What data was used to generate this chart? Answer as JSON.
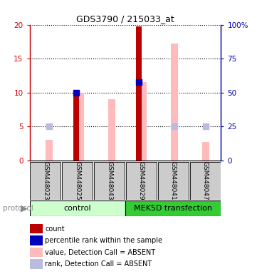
{
  "title": "GDS3790 / 215033_at",
  "samples": [
    "GSM448023",
    "GSM448025",
    "GSM448043",
    "GSM448029",
    "GSM448041",
    "GSM448047"
  ],
  "red_bars": [
    null,
    10.0,
    null,
    19.7,
    null,
    null
  ],
  "pink_bars": [
    3.0,
    10.0,
    9.0,
    11.5,
    17.2,
    2.7
  ],
  "blue_squares": [
    null,
    10.0,
    null,
    11.5,
    null,
    null
  ],
  "lightblue_dots": [
    5.0,
    null,
    null,
    null,
    5.0,
    5.0
  ],
  "ylim_left": [
    0,
    20
  ],
  "ylim_right": [
    0,
    100
  ],
  "yticks_left": [
    0,
    5,
    10,
    15,
    20
  ],
  "yticks_right": [
    0,
    25,
    50,
    75,
    100
  ],
  "ytick_labels_left": [
    "0",
    "5",
    "10",
    "15",
    "20"
  ],
  "ytick_labels_right": [
    "0",
    "25",
    "50",
    "75",
    "100%"
  ],
  "left_tick_color": "#cc0000",
  "right_tick_color": "#0000bb",
  "red_bar_color": "#bb0000",
  "pink_bar_color": "#ffbbbb",
  "blue_sq_color": "#0000bb",
  "lightblue_dot_color": "#bbbbdd",
  "control_bg": "#ccffcc",
  "mek5d_bg": "#33cc33",
  "sample_box_bg": "#cccccc",
  "legend_items": [
    {
      "label": "count",
      "color": "#bb0000"
    },
    {
      "label": "percentile rank within the sample",
      "color": "#0000bb"
    },
    {
      "label": "value, Detection Call = ABSENT",
      "color": "#ffbbbb"
    },
    {
      "label": "rank, Detection Call = ABSENT",
      "color": "#bbbbdd"
    }
  ]
}
